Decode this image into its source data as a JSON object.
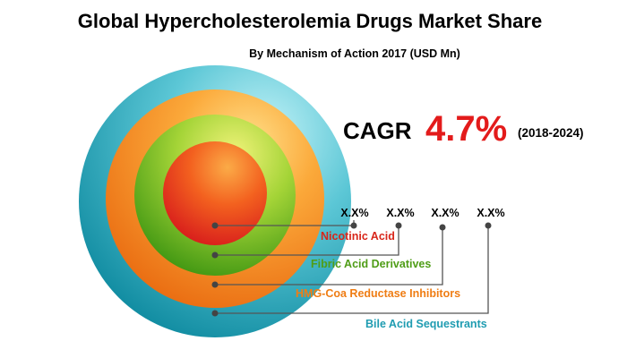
{
  "title": "Global Hypercholesterolemia Drugs Market Share",
  "subtitle": "By Mechanism of Action 2017 (USD Mn)",
  "cagr": {
    "label": "CAGR",
    "value": "4.7%",
    "period": "(2018-2024)"
  },
  "colors": {
    "title": "#000000",
    "cagr_value": "#e31b1b",
    "line": "#555555"
  },
  "chart_data": {
    "type": "concentric-circles",
    "title": "Global Hypercholesterolemia Drugs Market Share",
    "subtitle": "By Mechanism of Action 2017 (USD Mn)",
    "series": [
      {
        "name": "Nicotinic Acid",
        "value_label": "X.X%",
        "color": "#e0301e"
      },
      {
        "name": "Fibric Acid Derivatives",
        "value_label": "X.X%",
        "color": "#5aa51c"
      },
      {
        "name": "HMG-Coa Reductase Inhibitors",
        "value_label": "X.X%",
        "color": "#f2861b"
      },
      {
        "name": "Bile Acid Sequestrants",
        "value_label": "X.X%",
        "color": "#1fa3b8"
      }
    ]
  }
}
